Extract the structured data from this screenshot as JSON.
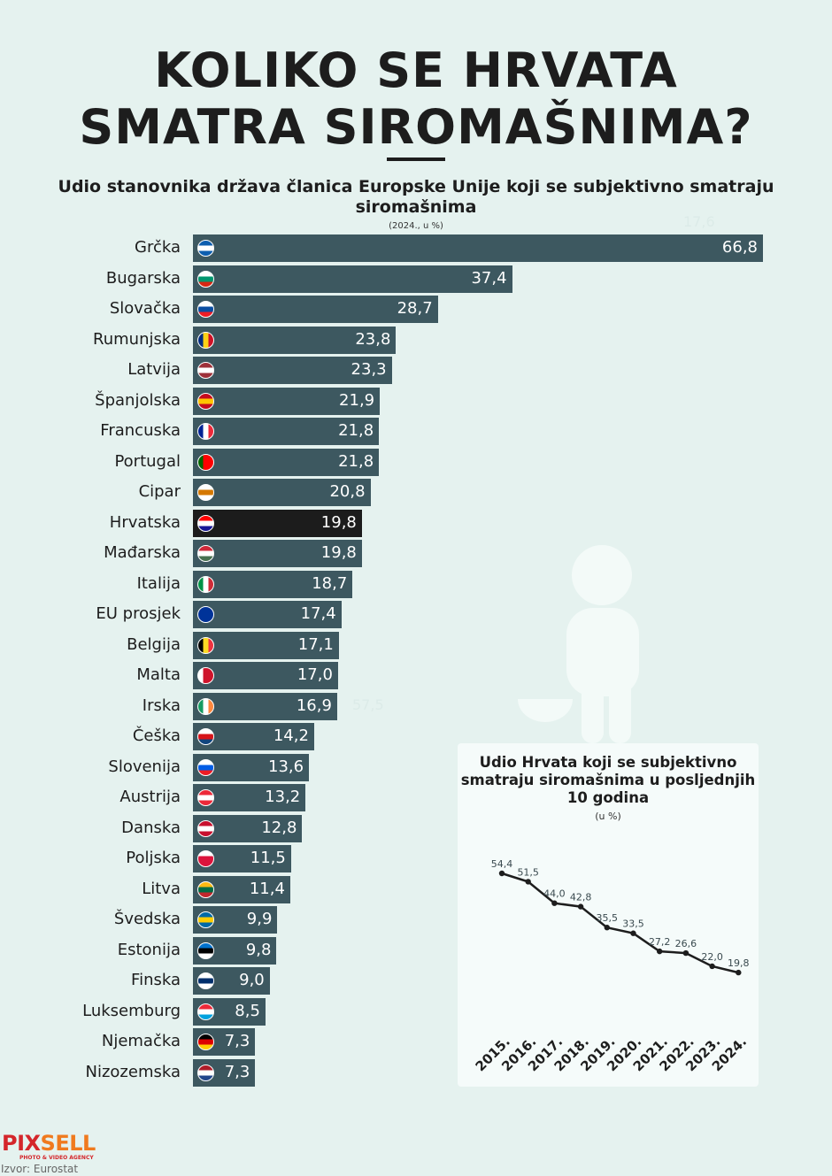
{
  "header": {
    "title_line1": "KOLIKO SE HRVATA",
    "title_line2": "SMATRA SIROMAŠNIMA?"
  },
  "chart_data": [
    {
      "type": "bar",
      "orientation": "horizontal",
      "title": "Udio stanovnika država članica Europske Unije koji se subjektivno smatraju siromašnima",
      "subtitle": "(2024., u %)",
      "bar_color": "#3d5860",
      "highlight_color": "#1c1c1c",
      "highlight": "Hrvatska",
      "ghost_labels": [
        "17,6",
        "57,5"
      ],
      "categories": [
        "Grčka",
        "Bugarska",
        "Slovačka",
        "Rumunjska",
        "Latvija",
        "Španjolska",
        "Francuska",
        "Portugal",
        "Cipar",
        "Hrvatska",
        "Mađarska",
        "Italija",
        "EU prosjek",
        "Belgija",
        "Malta",
        "Irska",
        "Češka",
        "Slovenija",
        "Austrija",
        "Danska",
        "Poljska",
        "Litva",
        "Švedska",
        "Estonija",
        "Finska",
        "Luksemburg",
        "Njemačka",
        "Nizozemska"
      ],
      "values": [
        66.8,
        37.4,
        28.7,
        23.8,
        23.3,
        21.9,
        21.8,
        21.8,
        20.8,
        19.8,
        19.8,
        18.7,
        17.4,
        17.1,
        17.0,
        16.9,
        14.2,
        13.6,
        13.2,
        12.8,
        11.5,
        11.4,
        9.9,
        9.8,
        9.0,
        8.5,
        7.3,
        7.3
      ],
      "value_labels": [
        "66,8",
        "37,4",
        "28,7",
        "23,8",
        "23,3",
        "21,9",
        "21,8",
        "21,8",
        "20,8",
        "19,8",
        "19,8",
        "18,7",
        "17,4",
        "17,1",
        "17,0",
        "16,9",
        "14,2",
        "13,6",
        "13,2",
        "12,8",
        "11,5",
        "11,4",
        "9,9",
        "9,8",
        "9,0",
        "8,5",
        "7,3",
        "7,3"
      ],
      "flags": [
        [
          "h",
          "#0d5eaf",
          "#fff",
          "#0d5eaf"
        ],
        [
          "h",
          "#fff",
          "#00966e",
          "#d62612"
        ],
        [
          "h",
          "#fff",
          "#0b4ea2",
          "#ee1c25"
        ],
        [
          "v",
          "#002b7f",
          "#fcd116",
          "#ce1126"
        ],
        [
          "h",
          "#9e3039",
          "#fff",
          "#9e3039"
        ],
        [
          "h",
          "#c60b1e",
          "#ffc400",
          "#c60b1e"
        ],
        [
          "v",
          "#002395",
          "#fff",
          "#ed2939"
        ],
        [
          "v",
          "#006600",
          "#ff0000",
          "#ff0000"
        ],
        [
          "h",
          "#fff",
          "#d57800",
          "#fff"
        ],
        [
          "h",
          "#ff0000",
          "#fff",
          "#171796"
        ],
        [
          "h",
          "#ce2939",
          "#fff",
          "#477050"
        ],
        [
          "v",
          "#009246",
          "#fff",
          "#ce2b37"
        ],
        [
          "h",
          "#003399",
          "#003399",
          "#003399"
        ],
        [
          "v",
          "#000",
          "#fdda24",
          "#ef3340"
        ],
        [
          "v",
          "#fff",
          "#cf142b",
          "#cf142b"
        ],
        [
          "v",
          "#169b62",
          "#fff",
          "#ff883e"
        ],
        [
          "h",
          "#fff",
          "#d7141a",
          "#11457e"
        ],
        [
          "h",
          "#fff",
          "#005ce5",
          "#ed1c24"
        ],
        [
          "h",
          "#ed2939",
          "#fff",
          "#ed2939"
        ],
        [
          "h",
          "#c8102e",
          "#fff",
          "#c8102e"
        ],
        [
          "h",
          "#fff",
          "#dc143c",
          "#dc143c"
        ],
        [
          "h",
          "#fdb913",
          "#006a44",
          "#c1272d"
        ],
        [
          "h",
          "#006aa7",
          "#fecc00",
          "#006aa7"
        ],
        [
          "h",
          "#0072ce",
          "#000",
          "#fff"
        ],
        [
          "h",
          "#fff",
          "#002f6c",
          "#fff"
        ],
        [
          "h",
          "#ed2939",
          "#fff",
          "#00a1de"
        ],
        [
          "h",
          "#000",
          "#dd0000",
          "#ffce00"
        ],
        [
          "h",
          "#ae1c28",
          "#fff",
          "#21468b"
        ]
      ]
    },
    {
      "type": "line",
      "title": "Udio Hrvata koji se subjektivno smatraju siromašnima u posljednjih 10 godina",
      "subtitle": "(u %)",
      "x": [
        "2015.",
        "2016.",
        "2017.",
        "2018.",
        "2019.",
        "2020.",
        "2021.",
        "2022.",
        "2023.",
        "2024."
      ],
      "y": [
        54.4,
        51.5,
        44.0,
        42.8,
        35.5,
        33.5,
        27.2,
        26.6,
        22.0,
        19.8
      ],
      "labels": [
        "54,4",
        "51,5",
        "44,0",
        "42,8",
        "35,5",
        "33,5",
        "27,2",
        "26,6",
        "22,0",
        "19,8"
      ],
      "line_color": "#1d1d1d"
    }
  ],
  "footer": {
    "logo_main1": "PIX",
    "logo_main2": "SELL",
    "logo_sub": "PHOTO & VIDEO AGENCY",
    "source": "Izvor: Eurostat"
  }
}
